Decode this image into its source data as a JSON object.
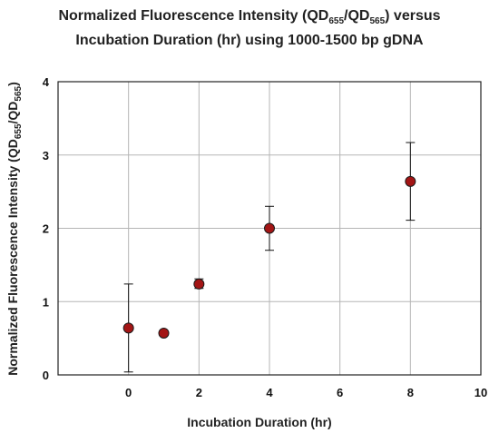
{
  "chart_data": {
    "type": "scatter",
    "title": {
      "line1": {
        "pre": "Normalized Fluorescence Intensity (QD",
        "sub1": "655",
        "mid": "/QD",
        "sub2": "565",
        "post": ") versus"
      },
      "line2": "Incubation Duration (hr) using 1000-1500 bp gDNA"
    },
    "xlabel": "Incubation Duration (hr)",
    "ylabel": {
      "pre": "Normalized Fluorescence Intensity (QD",
      "sub1": "655",
      "mid": "/QD",
      "sub2": "565",
      "post": ")"
    },
    "xlim": [
      -2,
      10
    ],
    "ylim": [
      0,
      4
    ],
    "xticks": [
      0,
      2,
      4,
      6,
      8,
      10
    ],
    "yticks": [
      0,
      1,
      2,
      3,
      4
    ],
    "grid": true,
    "marker_color": "#a31515",
    "points": [
      {
        "x": 0,
        "y": 0.64,
        "err_low": 0.04,
        "err_high": 1.24
      },
      {
        "x": 1,
        "y": 0.57,
        "err_low": 0.57,
        "err_high": 0.57
      },
      {
        "x": 2,
        "y": 1.24,
        "err_low": 1.18,
        "err_high": 1.31
      },
      {
        "x": 4,
        "y": 2.0,
        "err_low": 1.7,
        "err_high": 2.3
      },
      {
        "x": 8,
        "y": 2.64,
        "err_low": 2.11,
        "err_high": 3.17
      }
    ]
  }
}
